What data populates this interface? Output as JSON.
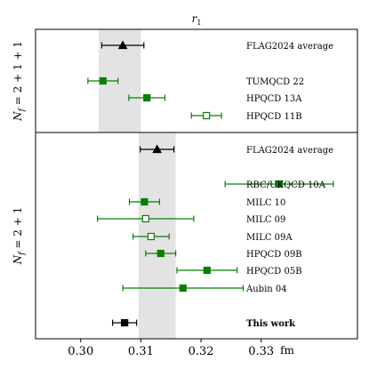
{
  "chart_data": {
    "type": "forest",
    "title": "r_1",
    "title_base": "r",
    "title_sub": "1",
    "xlabel": "fm",
    "xlim": [
      0.2925,
      0.346
    ],
    "xticks": [
      0.3,
      0.31,
      0.32,
      0.33
    ],
    "xtick_labels": [
      "0.30",
      "0.31",
      "0.32",
      "0.33"
    ],
    "colors": {
      "black": "#000000",
      "green": "#0a7d0a",
      "band": "#e3e3e3"
    },
    "groups": [
      {
        "label": "N_f = 2 + 1 + 1",
        "label_pre": "N",
        "label_sub": "f",
        "label_post": " = 2 + 1 + 1",
        "band": [
          0.303,
          0.31
        ],
        "entries": [
          {
            "name": "FLAG2024 average",
            "value": 0.307,
            "err": 0.0035,
            "marker": "triangle",
            "color": "black",
            "filled": true,
            "bold": false
          },
          {
            "name": "TUMQCD 22",
            "value": 0.3037,
            "err": 0.0025,
            "marker": "square",
            "color": "green",
            "filled": true,
            "bold": false
          },
          {
            "name": "HPQCD 13A",
            "value": 0.311,
            "err": 0.003,
            "marker": "square",
            "color": "green",
            "filled": true,
            "bold": false
          },
          {
            "name": "HPQCD 11B",
            "value": 0.3209,
            "err": 0.0025,
            "marker": "square",
            "color": "green",
            "filled": false,
            "bold": false
          }
        ]
      },
      {
        "label": "N_f = 2 + 1",
        "label_pre": "N",
        "label_sub": "f",
        "label_post": " = 2 + 1",
        "band": [
          0.3096,
          0.3158
        ],
        "entries": [
          {
            "name": "FLAG2024 average",
            "value": 0.3127,
            "err": 0.0028,
            "marker": "triangle",
            "color": "black",
            "filled": true,
            "bold": false
          },
          {
            "name": "RBC/UKQCD 10A",
            "value": 0.333,
            "err": 0.009,
            "marker": "square",
            "color": "green",
            "filled": true,
            "bold": false
          },
          {
            "name": "MILC 10",
            "value": 0.3106,
            "err": 0.0025,
            "marker": "square",
            "color": "green",
            "filled": true,
            "bold": false
          },
          {
            "name": "MILC 09",
            "value": 0.3108,
            "err": 0.008,
            "marker": "square",
            "color": "green",
            "filled": false,
            "bold": false
          },
          {
            "name": "MILC 09A",
            "value": 0.3117,
            "err": 0.003,
            "marker": "square",
            "color": "green",
            "filled": false,
            "bold": false
          },
          {
            "name": "HPQCD 09B",
            "value": 0.3133,
            "err": 0.0025,
            "marker": "square",
            "color": "green",
            "filled": true,
            "bold": false
          },
          {
            "name": "HPQCD 05B",
            "value": 0.321,
            "err": 0.005,
            "marker": "square",
            "color": "green",
            "filled": true,
            "bold": false
          },
          {
            "name": "Aubin 04",
            "value": 0.317,
            "err": 0.01,
            "marker": "square",
            "color": "green",
            "filled": true,
            "bold": false
          },
          {
            "name": "",
            "value": null,
            "err": null,
            "marker": "none",
            "color": "black",
            "filled": false,
            "bold": false
          },
          {
            "name": "This work",
            "value": 0.3073,
            "err": 0.002,
            "marker": "square",
            "color": "black",
            "filled": true,
            "bold": true
          }
        ]
      }
    ]
  }
}
